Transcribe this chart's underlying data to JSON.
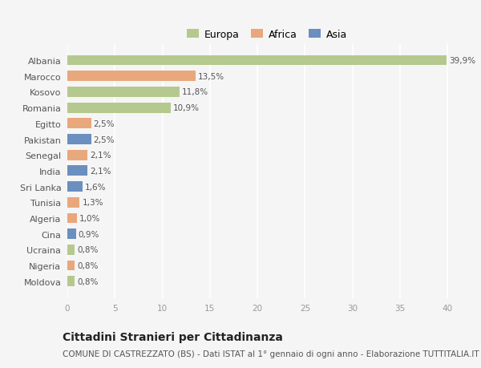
{
  "categories": [
    "Albania",
    "Marocco",
    "Kosovo",
    "Romania",
    "Egitto",
    "Pakistan",
    "Senegal",
    "India",
    "Sri Lanka",
    "Tunisia",
    "Algeria",
    "Cina",
    "Ucraina",
    "Nigeria",
    "Moldova"
  ],
  "values": [
    39.9,
    13.5,
    11.8,
    10.9,
    2.5,
    2.5,
    2.1,
    2.1,
    1.6,
    1.3,
    1.0,
    0.9,
    0.8,
    0.8,
    0.8
  ],
  "labels": [
    "39,9%",
    "13,5%",
    "11,8%",
    "10,9%",
    "2,5%",
    "2,5%",
    "2,1%",
    "2,1%",
    "1,6%",
    "1,3%",
    "1,0%",
    "0,9%",
    "0,8%",
    "0,8%",
    "0,8%"
  ],
  "continents": [
    "Europa",
    "Africa",
    "Europa",
    "Europa",
    "Africa",
    "Asia",
    "Africa",
    "Asia",
    "Asia",
    "Africa",
    "Africa",
    "Asia",
    "Europa",
    "Africa",
    "Europa"
  ],
  "colors": {
    "Europa": "#b5c98e",
    "Africa": "#e8a87c",
    "Asia": "#6b8fbf"
  },
  "legend_labels": [
    "Europa",
    "Africa",
    "Asia"
  ],
  "legend_colors": [
    "#b5c98e",
    "#e8a87c",
    "#6b8fbf"
  ],
  "title": "Cittadini Stranieri per Cittadinanza",
  "subtitle": "COMUNE DI CASTREZZATO (BS) - Dati ISTAT al 1° gennaio di ogni anno - Elaborazione TUTTITALIA.IT",
  "xlim": [
    0,
    42
  ],
  "xticks": [
    0,
    5,
    10,
    15,
    20,
    25,
    30,
    35,
    40
  ],
  "bg_color": "#f5f5f5",
  "bar_height": 0.65,
  "grid_color": "#ffffff",
  "label_fontsize": 7.5,
  "tick_fontsize": 7.5,
  "ytick_fontsize": 8,
  "title_fontsize": 10,
  "subtitle_fontsize": 7.5,
  "legend_fontsize": 9
}
